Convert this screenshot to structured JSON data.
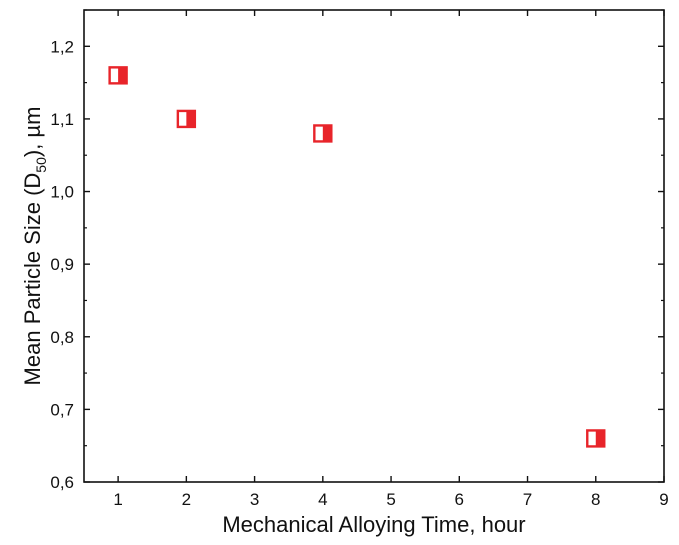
{
  "chart_data": {
    "type": "scatter",
    "title": "",
    "xlabel": "Mechanical Alloying Time, hour",
    "ylabel": {
      "prefix": "Mean Particle Size (D",
      "subscript": "50",
      "suffix": "), µm"
    },
    "xlim": [
      0.5,
      9
    ],
    "ylim": [
      0.6,
      1.25
    ],
    "x_ticks": [
      1,
      2,
      3,
      4,
      5,
      6,
      7,
      8,
      9
    ],
    "x_tick_labels": [
      "1",
      "2",
      "3",
      "4",
      "5",
      "6",
      "7",
      "8",
      "9"
    ],
    "y_ticks": [
      0.6,
      0.7,
      0.8,
      0.9,
      1.0,
      1.1,
      1.2
    ],
    "y_tick_labels": [
      "0,6",
      "0,7",
      "0,8",
      "0,9",
      "1,0",
      "1,1",
      "1,2"
    ],
    "grid": false,
    "series": [
      {
        "marker": "half-filled-square",
        "points": [
          {
            "x": 1,
            "y": 1.16
          },
          {
            "x": 2,
            "y": 1.1
          },
          {
            "x": 4,
            "y": 1.08
          },
          {
            "x": 8,
            "y": 0.66
          }
        ]
      }
    ],
    "colors": {
      "marker": "#e8242a",
      "axis": "#111111"
    }
  }
}
